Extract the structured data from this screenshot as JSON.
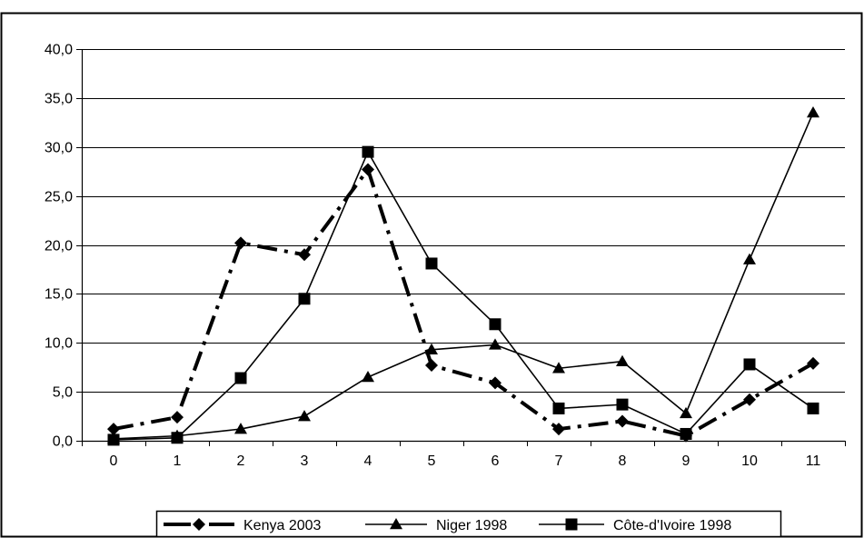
{
  "chart_data": {
    "type": "line",
    "title": "",
    "xlabel": "",
    "ylabel": "",
    "x": [
      0,
      1,
      2,
      3,
      4,
      5,
      6,
      7,
      8,
      9,
      10,
      11
    ],
    "x_tick_labels": [
      "0",
      "1",
      "2",
      "3",
      "4",
      "5",
      "6",
      "7",
      "8",
      "9",
      "10",
      "11"
    ],
    "ylim": [
      0,
      40
    ],
    "y_ticks": [
      0,
      5,
      10,
      15,
      20,
      25,
      30,
      35,
      40
    ],
    "y_tick_labels": [
      "0,0",
      "5,0",
      "10,0",
      "15,0",
      "20,0",
      "25,0",
      "30,0",
      "35,0",
      "40,0"
    ],
    "grid": "horizontal",
    "legend_position": "bottom",
    "series": [
      {
        "name": "Kenya 2003",
        "marker": "diamond",
        "line_style": "dash-dot",
        "color": "#000000",
        "values": [
          1.2,
          2.4,
          20.2,
          19.0,
          27.7,
          7.7,
          5.9,
          1.2,
          2.0,
          0.5,
          4.2,
          7.9
        ]
      },
      {
        "name": "Niger 1998",
        "marker": "triangle",
        "line_style": "solid",
        "color": "#000000",
        "values": [
          0.2,
          0.5,
          1.2,
          2.5,
          6.5,
          9.3,
          9.8,
          7.4,
          8.1,
          2.8,
          18.5,
          33.5
        ]
      },
      {
        "name": "Côte-d'Ivoire 1998",
        "marker": "square",
        "line_style": "solid",
        "color": "#000000",
        "values": [
          0.1,
          0.3,
          6.4,
          14.5,
          29.5,
          18.1,
          11.9,
          3.3,
          3.7,
          0.7,
          7.8,
          3.3
        ]
      }
    ]
  }
}
